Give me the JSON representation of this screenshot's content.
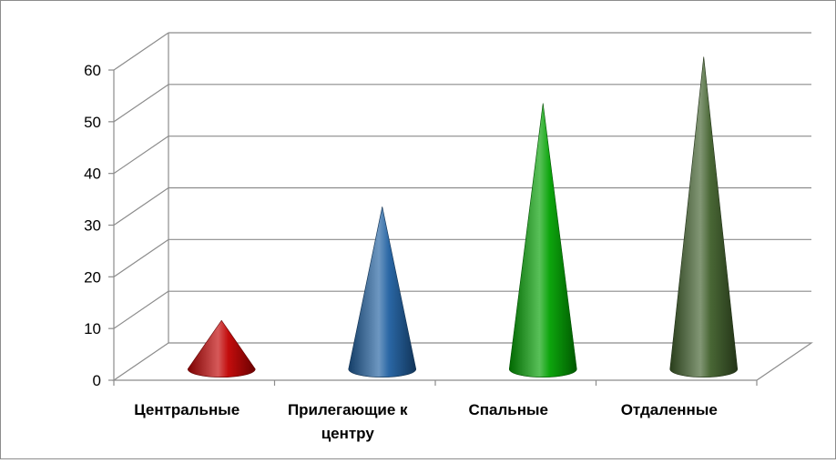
{
  "chart_data": {
    "type": "bar",
    "style": "3d-cone",
    "categories": [
      "Центральные",
      "Прилегающие к центру",
      "Спальные",
      "Отдаленные"
    ],
    "category_lines": [
      [
        "Центральные"
      ],
      [
        "Прилегающие к",
        "центру"
      ],
      [
        "Спальные"
      ],
      [
        "Отдаленные"
      ]
    ],
    "values": [
      8,
      30,
      50,
      59
    ],
    "colors": [
      "#c00000",
      "#1f5fa0",
      "#00a000",
      "#3f5f2a"
    ],
    "ylim": [
      0,
      60
    ],
    "yticks": [
      "0",
      "10",
      "20",
      "30",
      "40",
      "50",
      "60"
    ],
    "grid": true,
    "legend": "none",
    "title": "",
    "xlabel": "",
    "ylabel": ""
  }
}
